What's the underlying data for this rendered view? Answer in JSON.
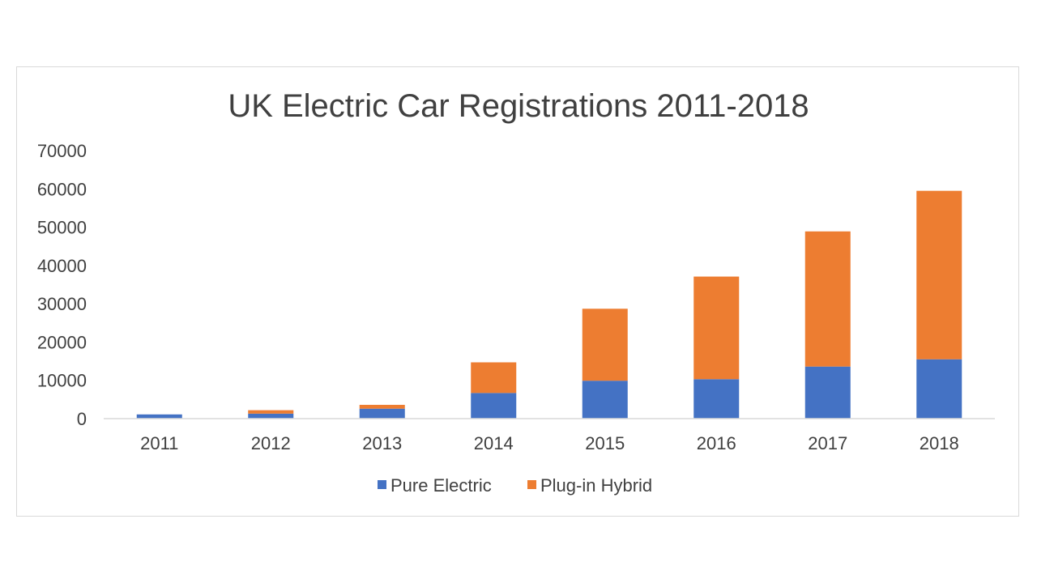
{
  "chart_data": {
    "type": "bar",
    "stacked": true,
    "title": "UK Electric Car Registrations 2011-2018",
    "categories": [
      "2011",
      "2012",
      "2013",
      "2014",
      "2015",
      "2016",
      "2017",
      "2018"
    ],
    "series": [
      {
        "name": "Pure Electric",
        "color": "#4472c4",
        "values": [
          1100,
          1300,
          2600,
          6700,
          9900,
          10300,
          13600,
          15500
        ]
      },
      {
        "name": "Plug-in Hybrid",
        "color": "#ed7d31",
        "values": [
          0,
          900,
          1000,
          8000,
          18800,
          26800,
          35300,
          44000
        ]
      }
    ],
    "ylim": [
      0,
      70000
    ],
    "yticks": [
      "0",
      "10000",
      "20000",
      "30000",
      "40000",
      "50000",
      "60000",
      "70000"
    ],
    "grid": false,
    "legend": "bottom",
    "title_color": "#404040",
    "tick_color": "#404040"
  }
}
